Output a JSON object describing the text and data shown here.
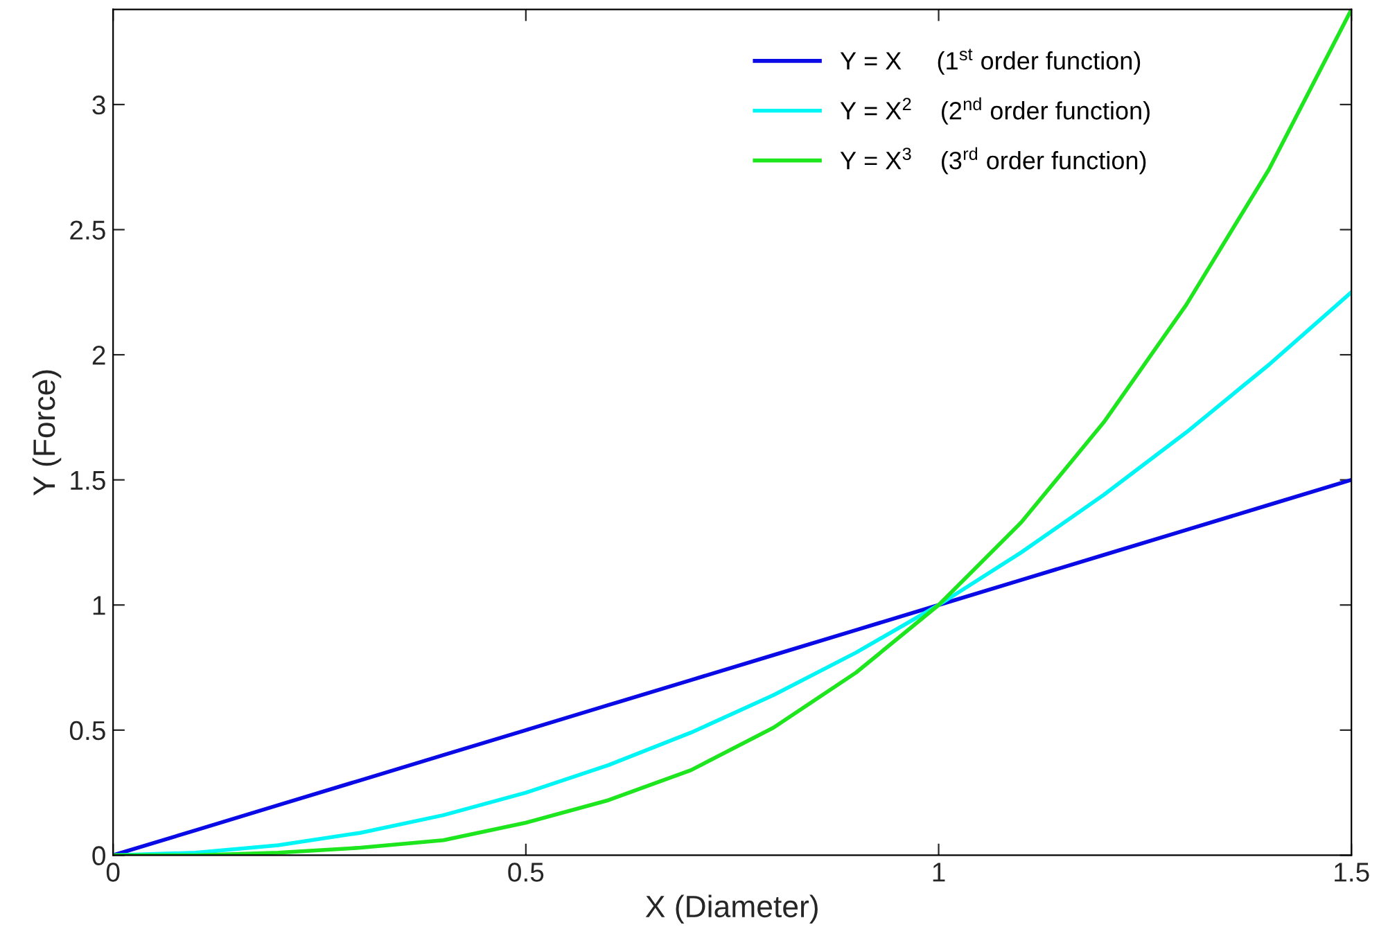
{
  "chart_data": {
    "type": "line",
    "xlabel": "X (Diameter)",
    "ylabel": "Y (Force)",
    "x": [
      0,
      0.1,
      0.2,
      0.3,
      0.4,
      0.5,
      0.6,
      0.7,
      0.8,
      0.9,
      1,
      1.1,
      1.2,
      1.3,
      1.4,
      1.5
    ],
    "series": [
      {
        "name": "Y = X     (1$^{st}$ order function)",
        "color": "#0a0ae6",
        "values": [
          0,
          0.1,
          0.2,
          0.3,
          0.4,
          0.5,
          0.6,
          0.7,
          0.8,
          0.9,
          1,
          1.1,
          1.2,
          1.3,
          1.4,
          1.5
        ]
      },
      {
        "name": "Y = X$^{2}$    (2$^{nd}$ order function)",
        "color": "#00f5f5",
        "values": [
          0,
          0.01,
          0.04,
          0.09,
          0.16,
          0.25,
          0.36,
          0.49,
          0.64,
          0.81,
          1,
          1.21,
          1.44,
          1.69,
          1.96,
          2.25
        ]
      },
      {
        "name": "Y = X$^{3}$    (3$^{rd}$ order function)",
        "color": "#1ee61e",
        "values": [
          0,
          0,
          0.01,
          0.03,
          0.06,
          0.13,
          0.22,
          0.34,
          0.51,
          0.73,
          1,
          1.33,
          1.73,
          2.2,
          2.74,
          3.38
        ]
      }
    ],
    "xlim": [
      0,
      1.5
    ],
    "ylim": [
      0,
      3.38
    ],
    "xticks": [
      0,
      0.5,
      1,
      1.5
    ],
    "yticks": [
      0,
      0.5,
      1,
      1.5,
      2,
      2.5,
      3
    ],
    "grid": false,
    "legend": "top right",
    "marker": "none",
    "line_style": "solid"
  }
}
